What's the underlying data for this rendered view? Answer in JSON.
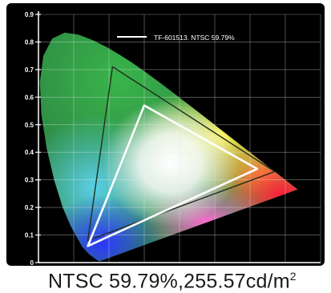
{
  "chart_data": {
    "type": "scatter",
    "subtype": "cie1931-chromaticity",
    "title": "",
    "xlabel": "",
    "ylabel": "",
    "x_ticks": [],
    "y_ticks": [
      "0.9",
      "0.8",
      "0.7",
      "0.6",
      "0.5",
      "0.4",
      "0.3",
      "0.2",
      "0.1",
      "0"
    ],
    "ylim": [
      0,
      0.9
    ],
    "xlim": [
      0,
      0.8
    ],
    "grid": true,
    "legend": {
      "placement": "top-right",
      "label": "TF-601513. NTSC 59.79%",
      "color": "#ffffff"
    },
    "series": [
      {
        "name": "TF-601513. NTSC 59.79%",
        "shape": "triangle",
        "color": "#ffffff",
        "points": [
          {
            "x": 0.3,
            "y": 0.57
          },
          {
            "x": 0.62,
            "y": 0.34
          },
          {
            "x": 0.14,
            "y": 0.06
          }
        ]
      },
      {
        "shape": "triangle",
        "color": "#1f3020",
        "points": [
          {
            "x": 0.21,
            "y": 0.71
          },
          {
            "x": 0.67,
            "y": 0.33
          },
          {
            "x": 0.14,
            "y": 0.08
          }
        ]
      }
    ]
  },
  "caption": {
    "main": "NTSC 59.79%,255.57cd/m",
    "sup": "2"
  },
  "colors": {
    "frame": "#000000",
    "axis": "#ffffff",
    "grid": "#e8e8e8",
    "caption": "#1a1a1a"
  }
}
